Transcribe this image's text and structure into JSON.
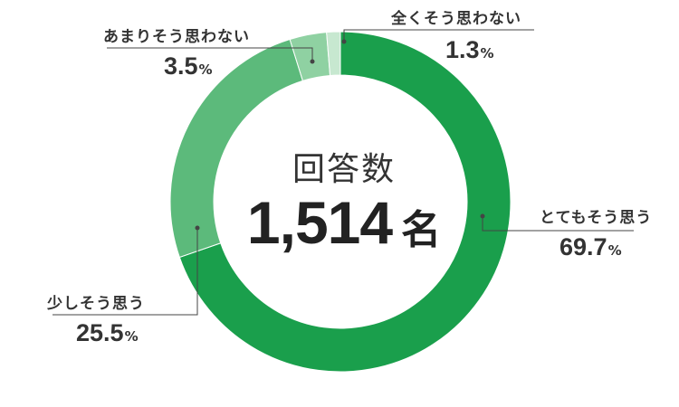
{
  "chart_data": {
    "type": "pie",
    "center": {
      "title": "回答数",
      "count": "1,514",
      "unit": "名"
    },
    "percent_unit": "%",
    "slices": [
      {
        "label": "とてもそう思う",
        "value": 69.7,
        "display": "69.7",
        "color": "#1a9f4c"
      },
      {
        "label": "少しそう思う",
        "value": 25.5,
        "display": "25.5",
        "color": "#5cba7b"
      },
      {
        "label": "あまりそう思わない",
        "value": 3.5,
        "display": "3.5",
        "color": "#8fd1a2"
      },
      {
        "label": "全くそう思わない",
        "value": 1.3,
        "display": "1.3",
        "color": "#c7e8d0"
      }
    ]
  }
}
